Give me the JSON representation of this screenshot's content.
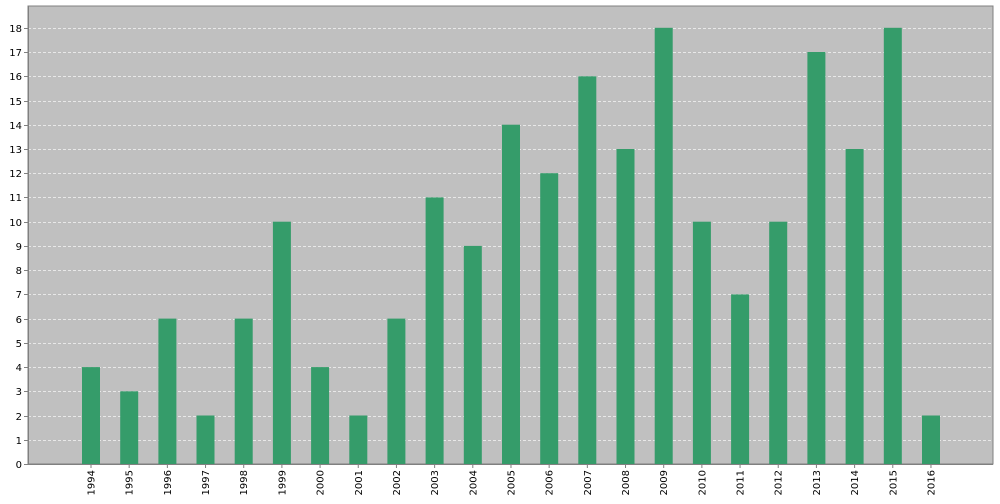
{
  "colors": {
    "plot_background": "#c0c0c0",
    "bar": "#359c6a",
    "grid": "#e8e8e8",
    "axis": "#808080",
    "text": "#000000",
    "page_background": "#ffffff"
  },
  "chart_data": {
    "type": "bar",
    "categories": [
      "1994",
      "1995",
      "1996",
      "1997",
      "1998",
      "1999",
      "2000",
      "2001",
      "2002",
      "2003",
      "2004",
      "2005",
      "2006",
      "2007",
      "2008",
      "2009",
      "2010",
      "2011",
      "2012",
      "2013",
      "2014",
      "2015",
      "2016"
    ],
    "series": [
      {
        "values": [
          4,
          3,
          6,
          2,
          6,
          10,
          4,
          2,
          6,
          11,
          9,
          14,
          12,
          16,
          13,
          18,
          10,
          7,
          10,
          17,
          13,
          18,
          2
        ]
      }
    ],
    "title": "",
    "xlabel": "",
    "ylabel": "",
    "ylim": [
      0,
      18.9
    ],
    "yticks": [
      0,
      1,
      2,
      3,
      4,
      5,
      6,
      7,
      8,
      9,
      10,
      11,
      12,
      13,
      14,
      15,
      16,
      17,
      18
    ],
    "grid": true,
    "grid_style": "dashed horizontal",
    "x_tick_rotation": "vertical"
  }
}
